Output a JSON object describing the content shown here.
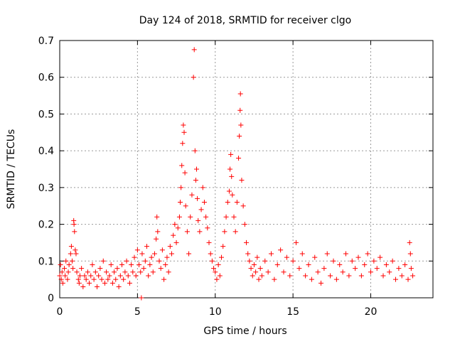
{
  "chart_data": {
    "type": "scatter",
    "title": "Day 124 of 2018, SRMTID for receiver clgo",
    "xlabel": "GPS time / hours",
    "ylabel": "SRMTID / TECUs",
    "xlim": [
      0,
      24
    ],
    "ylim": [
      0,
      0.7
    ],
    "xticks": [
      0,
      5,
      10,
      15,
      20
    ],
    "yticks": [
      0,
      0.1,
      0.2,
      0.3,
      0.4,
      0.5,
      0.6,
      0.7
    ],
    "grid": true,
    "marker": "+",
    "color": "#ff0000",
    "series": [
      {
        "name": "SRMTID",
        "points": [
          [
            0.0,
            0.06
          ],
          [
            0.05,
            0.09
          ],
          [
            0.1,
            0.05
          ],
          [
            0.15,
            0.07
          ],
          [
            0.2,
            0.04
          ],
          [
            0.3,
            0.08
          ],
          [
            0.35,
            0.06
          ],
          [
            0.4,
            0.1
          ],
          [
            0.5,
            0.05
          ],
          [
            0.55,
            0.07
          ],
          [
            0.6,
            0.09
          ],
          [
            0.7,
            0.12
          ],
          [
            0.75,
            0.14
          ],
          [
            0.8,
            0.1
          ],
          [
            0.85,
            0.08
          ],
          [
            0.9,
            0.21
          ],
          [
            0.92,
            0.2
          ],
          [
            0.95,
            0.18
          ],
          [
            1.0,
            0.13
          ],
          [
            1.05,
            0.12
          ],
          [
            1.1,
            0.07
          ],
          [
            1.2,
            0.05
          ],
          [
            1.25,
            0.04
          ],
          [
            1.3,
            0.06
          ],
          [
            1.4,
            0.08
          ],
          [
            1.5,
            0.03
          ],
          [
            1.6,
            0.06
          ],
          [
            1.7,
            0.05
          ],
          [
            1.8,
            0.07
          ],
          [
            1.9,
            0.04
          ],
          [
            2.0,
            0.06
          ],
          [
            2.1,
            0.09
          ],
          [
            2.2,
            0.05
          ],
          [
            2.3,
            0.07
          ],
          [
            2.4,
            0.03
          ],
          [
            2.5,
            0.06
          ],
          [
            2.6,
            0.08
          ],
          [
            2.7,
            0.05
          ],
          [
            2.8,
            0.1
          ],
          [
            2.9,
            0.04
          ],
          [
            3.0,
            0.07
          ],
          [
            3.1,
            0.05
          ],
          [
            3.2,
            0.06
          ],
          [
            3.3,
            0.09
          ],
          [
            3.4,
            0.04
          ],
          [
            3.5,
            0.07
          ],
          [
            3.6,
            0.05
          ],
          [
            3.7,
            0.08
          ],
          [
            3.8,
            0.03
          ],
          [
            3.9,
            0.06
          ],
          [
            4.0,
            0.09
          ],
          [
            4.1,
            0.05
          ],
          [
            4.2,
            0.07
          ],
          [
            4.3,
            0.1
          ],
          [
            4.4,
            0.06
          ],
          [
            4.5,
            0.04
          ],
          [
            4.6,
            0.09
          ],
          [
            4.7,
            0.07
          ],
          [
            4.8,
            0.11
          ],
          [
            4.9,
            0.06
          ],
          [
            5.0,
            0.13
          ],
          [
            5.1,
            0.09
          ],
          [
            5.2,
            0.07
          ],
          [
            5.25,
            0.0
          ],
          [
            5.3,
            0.12
          ],
          [
            5.4,
            0.08
          ],
          [
            5.5,
            0.1
          ],
          [
            5.6,
            0.14
          ],
          [
            5.7,
            0.06
          ],
          [
            5.8,
            0.09
          ],
          [
            5.9,
            0.11
          ],
          [
            6.0,
            0.07
          ],
          [
            6.1,
            0.12
          ],
          [
            6.2,
            0.16
          ],
          [
            6.25,
            0.22
          ],
          [
            6.3,
            0.18
          ],
          [
            6.4,
            0.1
          ],
          [
            6.5,
            0.08
          ],
          [
            6.6,
            0.13
          ],
          [
            6.7,
            0.05
          ],
          [
            6.8,
            0.09
          ],
          [
            6.9,
            0.11
          ],
          [
            7.0,
            0.07
          ],
          [
            7.1,
            0.14
          ],
          [
            7.2,
            0.12
          ],
          [
            7.3,
            0.17
          ],
          [
            7.4,
            0.2
          ],
          [
            7.5,
            0.15
          ],
          [
            7.6,
            0.19
          ],
          [
            7.7,
            0.22
          ],
          [
            7.75,
            0.26
          ],
          [
            7.8,
            0.3
          ],
          [
            7.85,
            0.36
          ],
          [
            7.9,
            0.42
          ],
          [
            7.95,
            0.47
          ],
          [
            8.0,
            0.45
          ],
          [
            8.05,
            0.34
          ],
          [
            8.1,
            0.25
          ],
          [
            8.2,
            0.18
          ],
          [
            8.3,
            0.12
          ],
          [
            8.4,
            0.22
          ],
          [
            8.5,
            0.28
          ],
          [
            8.6,
            0.6
          ],
          [
            8.65,
            0.675
          ],
          [
            8.7,
            0.4
          ],
          [
            8.75,
            0.32
          ],
          [
            8.8,
            0.35
          ],
          [
            8.85,
            0.27
          ],
          [
            8.9,
            0.21
          ],
          [
            9.0,
            0.18
          ],
          [
            9.1,
            0.24
          ],
          [
            9.2,
            0.3
          ],
          [
            9.3,
            0.26
          ],
          [
            9.4,
            0.22
          ],
          [
            9.5,
            0.19
          ],
          [
            9.6,
            0.15
          ],
          [
            9.7,
            0.12
          ],
          [
            9.8,
            0.1
          ],
          [
            9.9,
            0.08
          ],
          [
            10.0,
            0.07
          ],
          [
            10.1,
            0.05
          ],
          [
            10.2,
            0.09
          ],
          [
            10.3,
            0.06
          ],
          [
            10.4,
            0.11
          ],
          [
            10.5,
            0.14
          ],
          [
            10.6,
            0.18
          ],
          [
            10.7,
            0.22
          ],
          [
            10.8,
            0.26
          ],
          [
            10.9,
            0.29
          ],
          [
            10.95,
            0.35
          ],
          [
            11.0,
            0.39
          ],
          [
            11.05,
            0.33
          ],
          [
            11.1,
            0.28
          ],
          [
            11.2,
            0.22
          ],
          [
            11.3,
            0.18
          ],
          [
            11.4,
            0.26
          ],
          [
            11.5,
            0.38
          ],
          [
            11.55,
            0.44
          ],
          [
            11.6,
            0.51
          ],
          [
            11.62,
            0.555
          ],
          [
            11.65,
            0.47
          ],
          [
            11.7,
            0.32
          ],
          [
            11.8,
            0.25
          ],
          [
            11.9,
            0.2
          ],
          [
            12.0,
            0.15
          ],
          [
            12.1,
            0.12
          ],
          [
            12.2,
            0.1
          ],
          [
            12.3,
            0.08
          ],
          [
            12.4,
            0.06
          ],
          [
            12.5,
            0.09
          ],
          [
            12.6,
            0.07
          ],
          [
            12.7,
            0.11
          ],
          [
            12.8,
            0.05
          ],
          [
            12.9,
            0.08
          ],
          [
            13.0,
            0.06
          ],
          [
            13.2,
            0.1
          ],
          [
            13.4,
            0.07
          ],
          [
            13.6,
            0.12
          ],
          [
            13.8,
            0.05
          ],
          [
            14.0,
            0.09
          ],
          [
            14.2,
            0.13
          ],
          [
            14.4,
            0.07
          ],
          [
            14.6,
            0.11
          ],
          [
            14.8,
            0.06
          ],
          [
            15.0,
            0.1
          ],
          [
            15.2,
            0.15
          ],
          [
            15.4,
            0.08
          ],
          [
            15.6,
            0.12
          ],
          [
            15.8,
            0.06
          ],
          [
            16.0,
            0.09
          ],
          [
            16.2,
            0.05
          ],
          [
            16.4,
            0.11
          ],
          [
            16.6,
            0.07
          ],
          [
            16.8,
            0.04
          ],
          [
            17.0,
            0.08
          ],
          [
            17.2,
            0.12
          ],
          [
            17.4,
            0.06
          ],
          [
            17.6,
            0.1
          ],
          [
            17.8,
            0.05
          ],
          [
            18.0,
            0.09
          ],
          [
            18.2,
            0.07
          ],
          [
            18.4,
            0.12
          ],
          [
            18.6,
            0.06
          ],
          [
            18.8,
            0.1
          ],
          [
            19.0,
            0.08
          ],
          [
            19.2,
            0.11
          ],
          [
            19.4,
            0.06
          ],
          [
            19.6,
            0.09
          ],
          [
            19.8,
            0.12
          ],
          [
            20.0,
            0.07
          ],
          [
            20.2,
            0.1
          ],
          [
            20.4,
            0.08
          ],
          [
            20.6,
            0.11
          ],
          [
            20.8,
            0.06
          ],
          [
            21.0,
            0.09
          ],
          [
            21.2,
            0.07
          ],
          [
            21.4,
            0.1
          ],
          [
            21.6,
            0.05
          ],
          [
            21.8,
            0.08
          ],
          [
            22.0,
            0.06
          ],
          [
            22.2,
            0.09
          ],
          [
            22.4,
            0.05
          ],
          [
            22.5,
            0.15
          ],
          [
            22.55,
            0.12
          ],
          [
            22.6,
            0.08
          ],
          [
            22.7,
            0.06
          ]
        ]
      }
    ]
  }
}
